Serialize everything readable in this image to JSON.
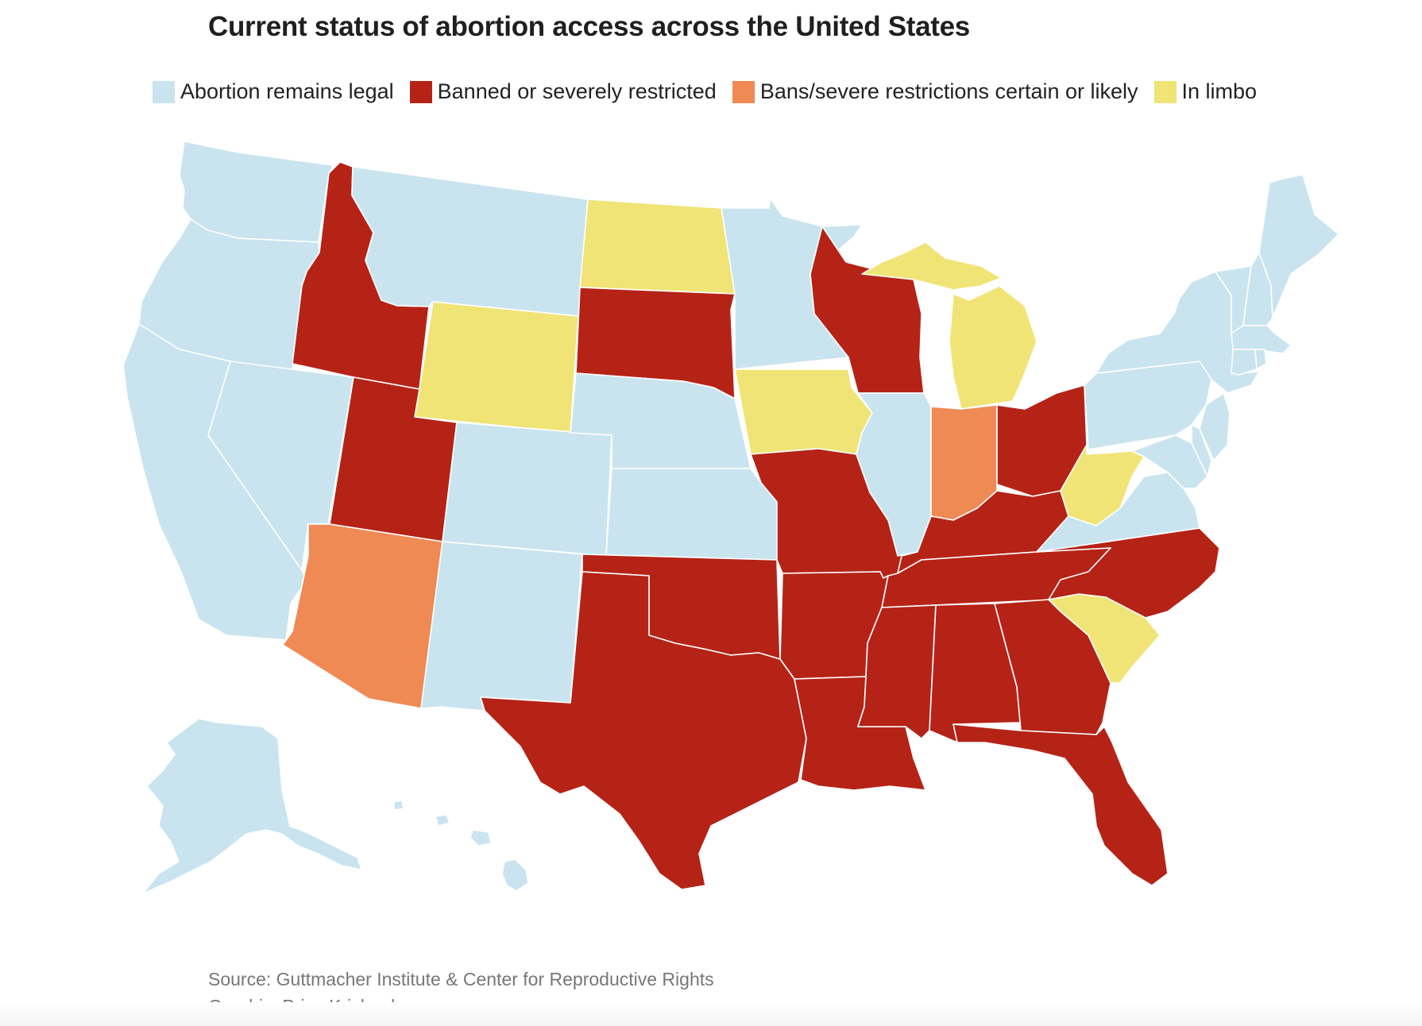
{
  "title": "Current status of abortion access across the United States",
  "legend": [
    {
      "label": "Abortion remains legal",
      "color": "#c9e4ee"
    },
    {
      "label": "Banned or severely restricted",
      "color": "#b52317"
    },
    {
      "label": "Bans/severe restrictions certain or likely",
      "color": "#f08a55"
    },
    {
      "label": "In limbo",
      "color": "#f0e476"
    }
  ],
  "colors": {
    "legal": "#c9e4ee",
    "banned": "#b52317",
    "likely": "#f08a55",
    "limbo": "#f0e476"
  },
  "map_data": {
    "states": {
      "WA": "legal",
      "OR": "legal",
      "CA": "legal",
      "NV": "legal",
      "ID": "banned",
      "MT": "legal",
      "WY": "limbo",
      "UT": "banned",
      "AZ": "likely",
      "CO": "legal",
      "NM": "legal",
      "ND": "limbo",
      "SD": "banned",
      "NE": "legal",
      "KS": "legal",
      "OK": "banned",
      "TX": "banned",
      "MN": "legal",
      "IA": "limbo",
      "MO": "banned",
      "AR": "banned",
      "LA": "banned",
      "WI": "banned",
      "IL": "legal",
      "MI": "limbo",
      "IN": "likely",
      "OH": "banned",
      "KY": "banned",
      "TN": "banned",
      "MS": "banned",
      "AL": "banned",
      "GA": "banned",
      "FL": "banned",
      "SC": "limbo",
      "NC": "banned",
      "VA": "legal",
      "WV": "limbo",
      "MD": "legal",
      "DE": "legal",
      "NJ": "legal",
      "PA": "legal",
      "NY": "legal",
      "CT": "legal",
      "RI": "legal",
      "MA": "legal",
      "VT": "legal",
      "NH": "legal",
      "ME": "legal",
      "AK": "legal",
      "HI": "legal"
    }
  },
  "footer": {
    "source": "Source: Guttmacher Institute & Center for Reproductive Rights",
    "graphic": "Graphic: Priya Krishnakumar"
  }
}
